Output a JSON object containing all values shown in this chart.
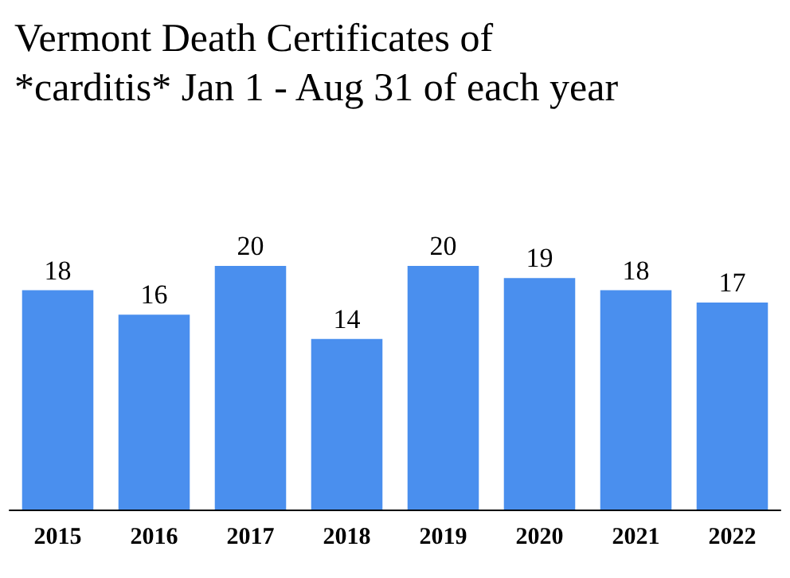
{
  "chart_data": {
    "type": "bar",
    "title": "Vermont Death Certificates of\n*carditis* Jan 1 - Aug 31 of each year",
    "categories": [
      "2015",
      "2016",
      "2017",
      "2018",
      "2019",
      "2020",
      "2021",
      "2022"
    ],
    "values": [
      18,
      16,
      20,
      14,
      20,
      19,
      18,
      17
    ],
    "color": "#4a8fee",
    "data_labels": true
  }
}
